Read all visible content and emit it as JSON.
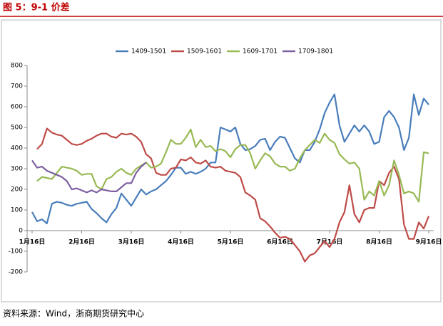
{
  "chart_data": {
    "type": "line",
    "title": "图 5：9-1 价差",
    "source": "资料来源：Wind，浙商期货研究中心",
    "categories": [
      "1月16日",
      null,
      null,
      null,
      null,
      null,
      null,
      null,
      null,
      null,
      "2月16日",
      null,
      null,
      null,
      null,
      null,
      null,
      null,
      null,
      null,
      "3月16日",
      null,
      null,
      null,
      null,
      null,
      null,
      null,
      null,
      null,
      "4月16日",
      null,
      null,
      null,
      null,
      null,
      null,
      null,
      null,
      null,
      "5月16日",
      null,
      null,
      null,
      null,
      null,
      null,
      null,
      null,
      null,
      "6月16日",
      null,
      null,
      null,
      null,
      null,
      null,
      null,
      null,
      null,
      "7月16日",
      null,
      null,
      null,
      null,
      null,
      null,
      null,
      null,
      null,
      "8月16日",
      null,
      null,
      null,
      null,
      null,
      null,
      null,
      null,
      null,
      "9月16日"
    ],
    "ylim": [
      -200,
      800
    ],
    "yticks": [
      -200,
      -100,
      0,
      100,
      200,
      300,
      400,
      500,
      600,
      700,
      800
    ],
    "grid": false,
    "legend": "top",
    "series": [
      {
        "name": "1409-1501",
        "color": "#4a7ebb",
        "values": [
          90,
          45,
          55,
          35,
          130,
          140,
          135,
          125,
          120,
          130,
          135,
          140,
          105,
          85,
          60,
          40,
          80,
          110,
          180,
          150,
          120,
          160,
          200,
          175,
          190,
          200,
          220,
          240,
          270,
          305,
          305,
          275,
          285,
          275,
          285,
          300,
          330,
          330,
          500,
          490,
          480,
          500,
          420,
          390,
          395,
          410,
          440,
          445,
          390,
          430,
          455,
          450,
          400,
          350,
          330,
          390,
          390,
          430,
          490,
          570,
          620,
          660,
          510,
          430,
          470,
          510,
          480,
          510,
          480,
          420,
          430,
          550,
          580,
          550,
          500,
          390,
          450,
          660,
          560,
          640,
          610
        ]
      },
      {
        "name": "1509-1601",
        "color": "#be4b48",
        "values": [
          null,
          395,
          420,
          495,
          475,
          465,
          460,
          440,
          420,
          415,
          420,
          435,
          445,
          460,
          470,
          470,
          455,
          450,
          470,
          465,
          470,
          455,
          430,
          370,
          350,
          280,
          270,
          270,
          300,
          305,
          345,
          340,
          355,
          330,
          325,
          340,
          310,
          305,
          310,
          290,
          285,
          280,
          260,
          185,
          170,
          150,
          60,
          45,
          20,
          -10,
          -35,
          -30,
          -40,
          -70,
          -100,
          -150,
          -120,
          -110,
          -80,
          -50,
          -80,
          -40,
          40,
          90,
          220,
          80,
          40,
          100,
          110,
          110,
          240,
          220,
          280,
          310,
          250,
          30,
          -40,
          -40,
          40,
          10,
          70
        ]
      },
      {
        "name": "1609-1701",
        "color": "#98b954",
        "values": [
          null,
          240,
          260,
          255,
          250,
          280,
          310,
          305,
          300,
          290,
          270,
          275,
          275,
          215,
          200,
          250,
          260,
          285,
          300,
          280,
          270,
          300,
          315,
          330,
          305,
          310,
          325,
          380,
          440,
          420,
          420,
          450,
          490,
          405,
          440,
          405,
          410,
          385,
          395,
          385,
          355,
          395,
          415,
          415,
          375,
          300,
          340,
          375,
          360,
          325,
          310,
          310,
          290,
          300,
          350,
          390,
          415,
          440,
          425,
          470,
          440,
          425,
          370,
          345,
          325,
          330,
          300,
          150,
          190,
          170,
          240,
          170,
          220,
          340,
          270,
          180,
          190,
          180,
          140,
          380,
          375
        ]
      },
      {
        "name": "1709-1801",
        "color": "#7d60a0",
        "values": [
          340,
          305,
          310,
          290,
          280,
          270,
          260,
          240,
          200,
          205,
          195,
          185,
          195,
          185,
          200,
          195,
          190,
          190,
          210,
          230,
          230,
          280,
          310,
          330,
          null,
          null,
          null,
          null,
          null,
          null,
          null,
          null,
          null,
          null,
          null,
          null,
          null,
          null,
          null,
          null,
          null,
          null,
          null,
          null,
          null,
          null,
          null,
          null,
          null,
          null,
          null,
          null,
          null,
          null,
          null,
          null,
          null,
          null,
          null,
          null,
          null,
          null,
          null,
          null,
          null,
          null,
          null,
          null,
          null,
          null,
          null,
          null,
          null,
          null,
          null,
          null,
          null,
          null,
          null,
          null,
          null
        ]
      }
    ]
  }
}
